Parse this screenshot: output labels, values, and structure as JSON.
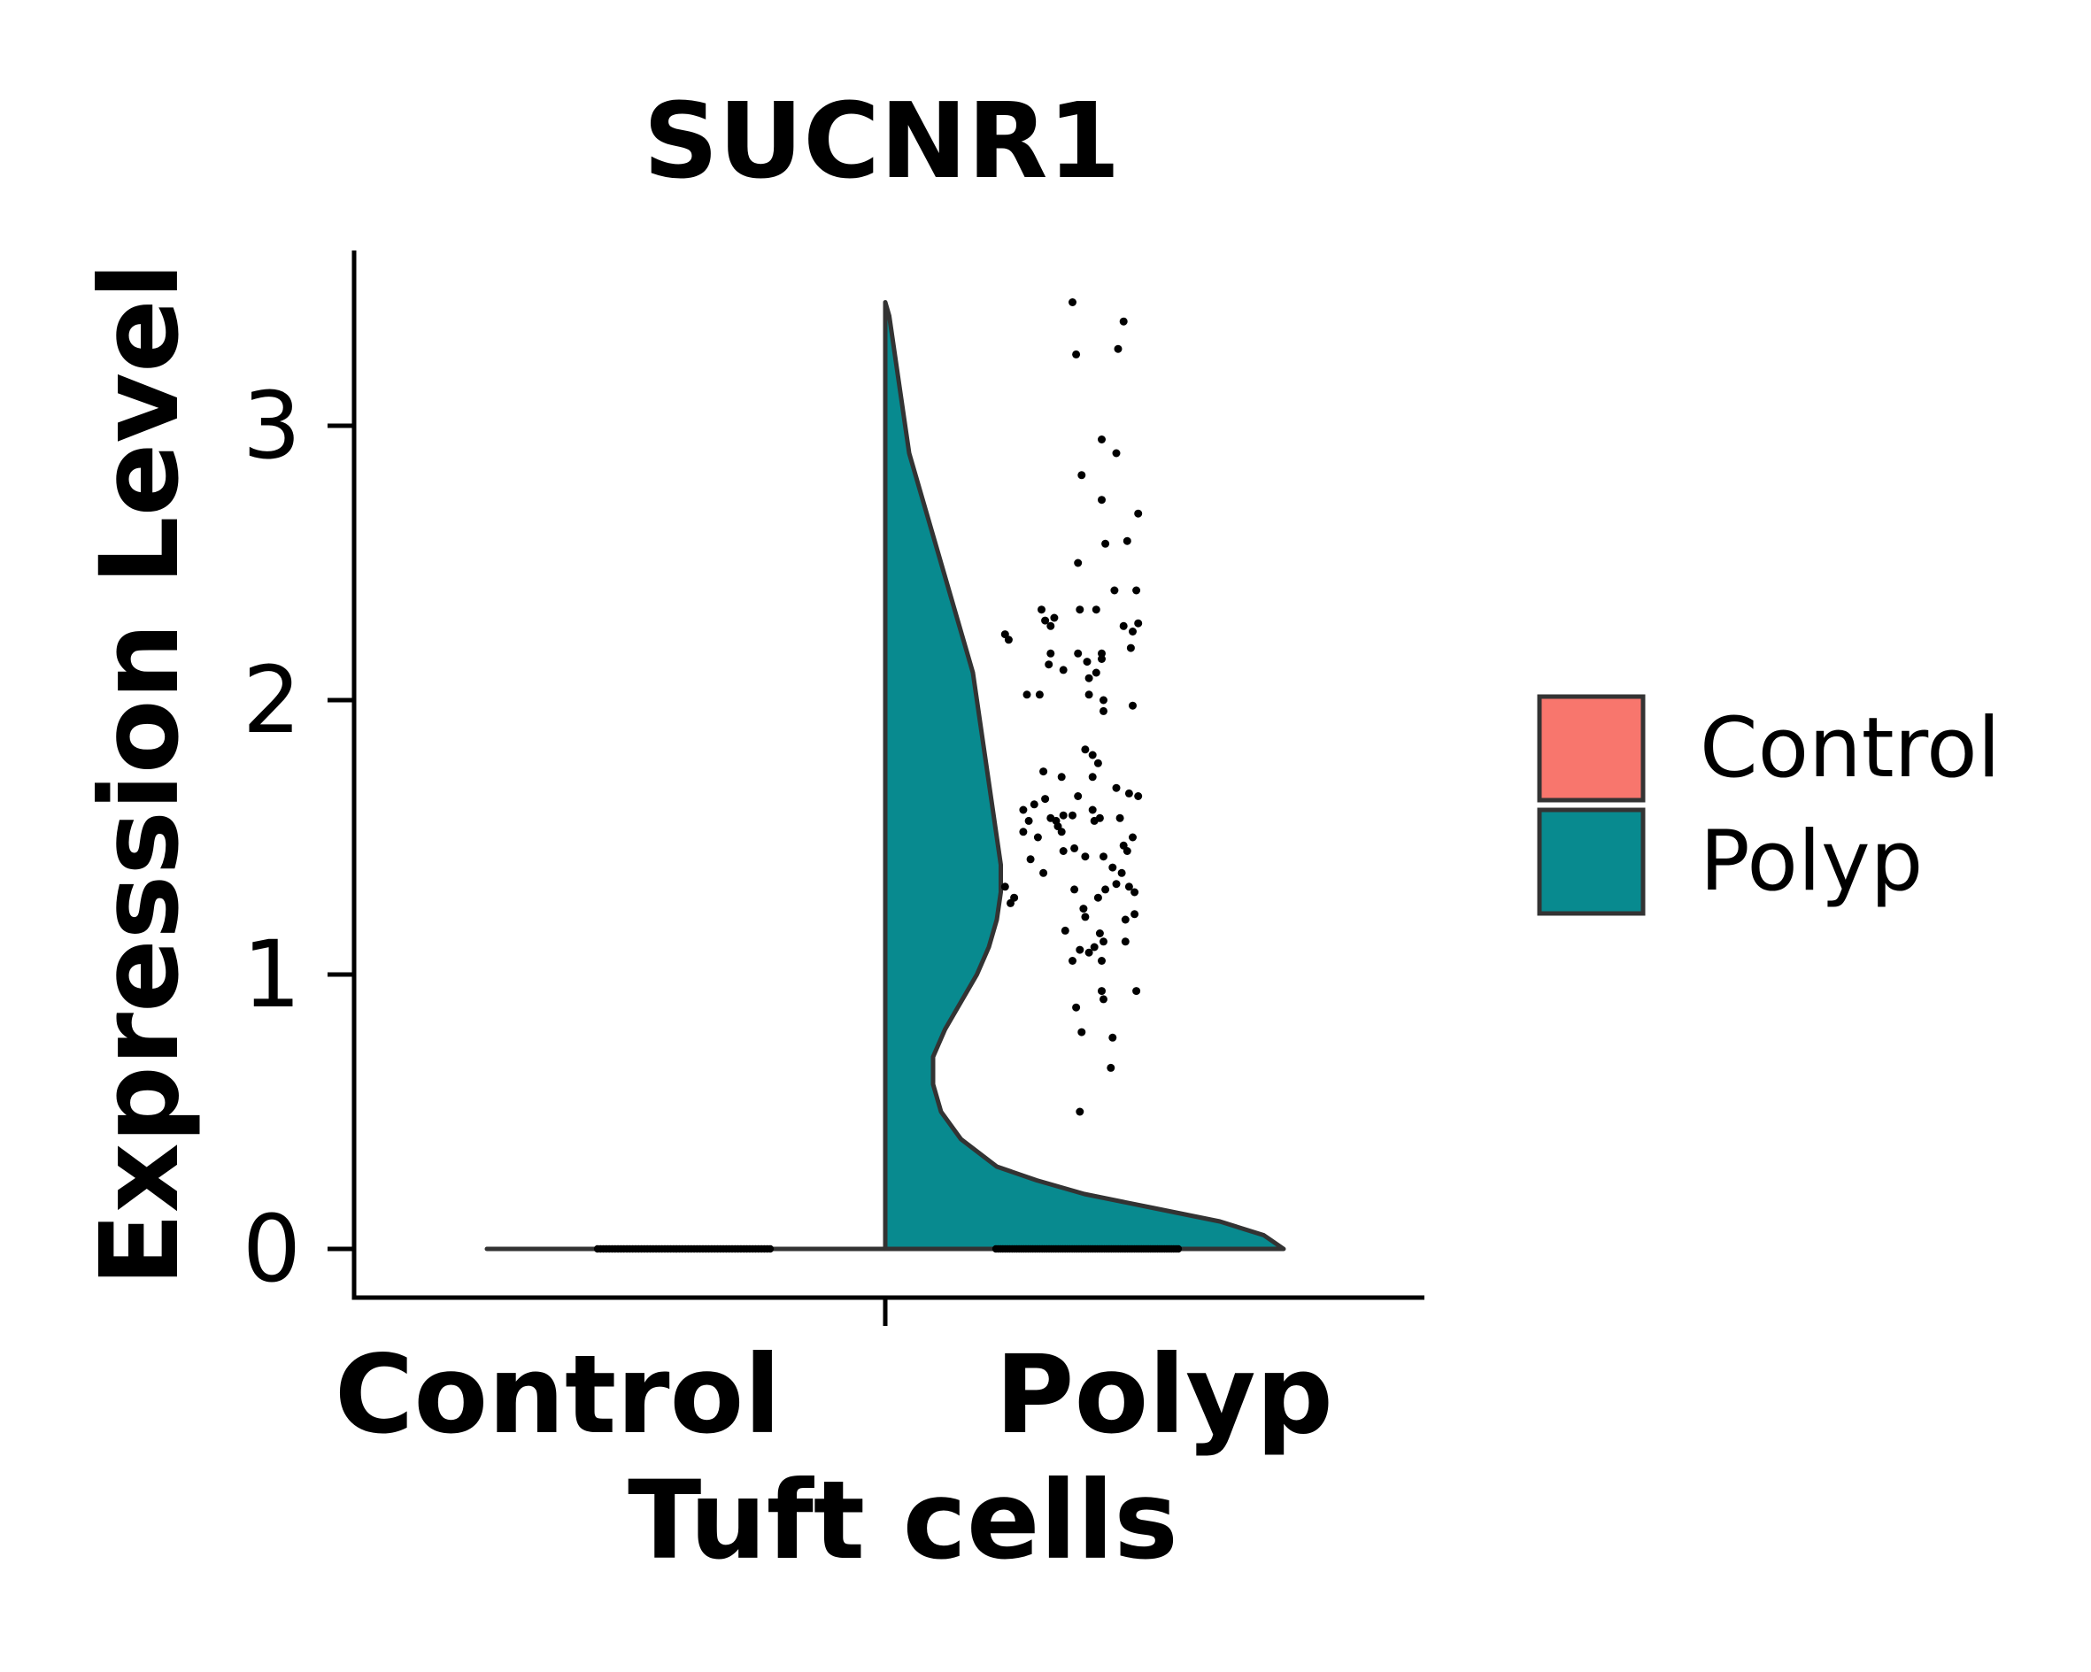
{
  "chart_data": {
    "type": "violin",
    "title": "SUCNR1",
    "xlabel": "Tuft cells",
    "ylabel": "Expression Level",
    "categories": [
      "Control",
      "Polyp"
    ],
    "y_ticks": [
      0,
      1,
      2,
      3
    ],
    "ylim": [
      -0.18,
      3.6
    ],
    "legend_position": "right",
    "legend": [
      {
        "label": "Control",
        "color": "#F8766D"
      },
      {
        "label": "Polyp",
        "color": "#088A8F"
      }
    ],
    "series": [
      {
        "name": "Control",
        "color": "#F8766D",
        "density_profile": [
          [
            0,
            0.0
          ],
          [
            0.001,
            0.0
          ]
        ],
        "zero_count": 60,
        "points": []
      },
      {
        "name": "Polyp",
        "color": "#088A8F",
        "density_profile": [
          [
            0.0,
            1.0
          ],
          [
            0.05,
            0.95
          ],
          [
            0.1,
            0.84
          ],
          [
            0.15,
            0.67
          ],
          [
            0.2,
            0.5
          ],
          [
            0.25,
            0.38
          ],
          [
            0.3,
            0.28
          ],
          [
            0.4,
            0.19
          ],
          [
            0.5,
            0.14
          ],
          [
            0.6,
            0.12
          ],
          [
            0.7,
            0.12
          ],
          [
            0.8,
            0.15
          ],
          [
            0.9,
            0.19
          ],
          [
            1.0,
            0.23
          ],
          [
            1.1,
            0.26
          ],
          [
            1.2,
            0.28
          ],
          [
            1.3,
            0.29
          ],
          [
            1.4,
            0.29
          ],
          [
            1.5,
            0.28
          ],
          [
            1.6,
            0.27
          ],
          [
            1.7,
            0.26
          ],
          [
            1.8,
            0.25
          ],
          [
            1.9,
            0.24
          ],
          [
            2.0,
            0.23
          ],
          [
            2.1,
            0.22
          ],
          [
            2.2,
            0.2
          ],
          [
            2.3,
            0.18
          ],
          [
            2.4,
            0.16
          ],
          [
            2.5,
            0.14
          ],
          [
            2.6,
            0.12
          ],
          [
            2.7,
            0.1
          ],
          [
            2.8,
            0.08
          ],
          [
            2.9,
            0.06
          ],
          [
            3.0,
            0.05
          ],
          [
            3.1,
            0.04
          ],
          [
            3.2,
            0.03
          ],
          [
            3.3,
            0.02
          ],
          [
            3.4,
            0.01
          ],
          [
            3.45,
            0.0
          ]
        ],
        "zero_count": 80,
        "points": [
          [
            0.42,
            3.45
          ],
          [
            0.7,
            3.38
          ],
          [
            0.44,
            3.26
          ],
          [
            0.67,
            3.28
          ],
          [
            0.58,
            2.95
          ],
          [
            0.66,
            2.9
          ],
          [
            0.47,
            2.82
          ],
          [
            0.58,
            2.73
          ],
          [
            0.78,
            2.68
          ],
          [
            0.6,
            2.57
          ],
          [
            0.72,
            2.58
          ],
          [
            0.45,
            2.5
          ],
          [
            0.65,
            2.4
          ],
          [
            0.77,
            2.4
          ],
          [
            0.25,
            2.33
          ],
          [
            0.46,
            2.33
          ],
          [
            0.55,
            2.33
          ],
          [
            0.32,
            2.3
          ],
          [
            0.27,
            2.29
          ],
          [
            0.3,
            2.27
          ],
          [
            0.7,
            2.27
          ],
          [
            0.75,
            2.25
          ],
          [
            0.78,
            2.28
          ],
          [
            0.05,
            2.24
          ],
          [
            0.07,
            2.22
          ],
          [
            0.3,
            2.17
          ],
          [
            0.45,
            2.17
          ],
          [
            0.58,
            2.17
          ],
          [
            0.74,
            2.19
          ],
          [
            0.29,
            2.13
          ],
          [
            0.5,
            2.14
          ],
          [
            0.58,
            2.15
          ],
          [
            0.37,
            2.11
          ],
          [
            0.51,
            2.08
          ],
          [
            0.55,
            2.1
          ],
          [
            0.17,
            2.02
          ],
          [
            0.24,
            2.02
          ],
          [
            0.51,
            2.02
          ],
          [
            0.59,
            2.0
          ],
          [
            0.75,
            1.98
          ],
          [
            0.59,
            1.96
          ],
          [
            0.49,
            1.82
          ],
          [
            0.53,
            1.8
          ],
          [
            0.56,
            1.77
          ],
          [
            0.53,
            1.72
          ],
          [
            0.26,
            1.74
          ],
          [
            0.36,
            1.72
          ],
          [
            0.66,
            1.68
          ],
          [
            0.73,
            1.66
          ],
          [
            0.78,
            1.65
          ],
          [
            0.27,
            1.64
          ],
          [
            0.45,
            1.65
          ],
          [
            0.21,
            1.62
          ],
          [
            0.15,
            1.6
          ],
          [
            0.53,
            1.6
          ],
          [
            0.18,
            1.56
          ],
          [
            0.3,
            1.57
          ],
          [
            0.33,
            1.56
          ],
          [
            0.37,
            1.58
          ],
          [
            0.42,
            1.58
          ],
          [
            0.54,
            1.56
          ],
          [
            0.57,
            1.57
          ],
          [
            0.68,
            1.57
          ],
          [
            0.34,
            1.54
          ],
          [
            0.36,
            1.52
          ],
          [
            0.15,
            1.52
          ],
          [
            0.23,
            1.5
          ],
          [
            0.75,
            1.5
          ],
          [
            0.72,
            1.45
          ],
          [
            0.7,
            1.47
          ],
          [
            0.37,
            1.45
          ],
          [
            0.43,
            1.46
          ],
          [
            0.19,
            1.42
          ],
          [
            0.49,
            1.43
          ],
          [
            0.59,
            1.43
          ],
          [
            0.64,
            1.39
          ],
          [
            0.26,
            1.37
          ],
          [
            0.69,
            1.37
          ],
          [
            0.66,
            1.33
          ],
          [
            0.05,
            1.32
          ],
          [
            0.73,
            1.32
          ],
          [
            0.43,
            1.31
          ],
          [
            0.6,
            1.31
          ],
          [
            0.76,
            1.3
          ],
          [
            0.1,
            1.28
          ],
          [
            0.56,
            1.28
          ],
          [
            0.08,
            1.26
          ],
          [
            0.48,
            1.24
          ],
          [
            0.49,
            1.21
          ],
          [
            0.76,
            1.22
          ],
          [
            0.71,
            1.2
          ],
          [
            0.38,
            1.16
          ],
          [
            0.57,
            1.15
          ],
          [
            0.59,
            1.12
          ],
          [
            0.54,
            1.1
          ],
          [
            0.71,
            1.12
          ],
          [
            0.46,
            1.09
          ],
          [
            0.51,
            1.08
          ],
          [
            0.42,
            1.05
          ],
          [
            0.58,
            1.05
          ],
          [
            0.77,
            0.94
          ],
          [
            0.58,
            0.94
          ],
          [
            0.59,
            0.91
          ],
          [
            0.44,
            0.88
          ],
          [
            0.64,
            0.77
          ],
          [
            0.47,
            0.79
          ],
          [
            0.63,
            0.66
          ],
          [
            0.46,
            0.5
          ]
        ]
      }
    ]
  }
}
